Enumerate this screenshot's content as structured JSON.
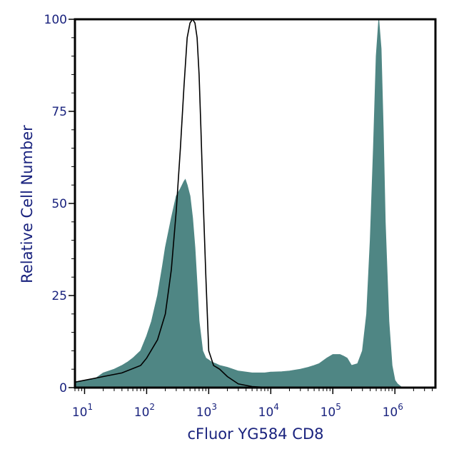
{
  "chart_data": {
    "type": "area",
    "xlabel": "cFluor YG584 CD8",
    "ylabel": "Relative Cell Number",
    "x_scale": "log",
    "xlim": [
      7,
      4500000
    ],
    "ylim": [
      0,
      100
    ],
    "y_ticks": [
      0,
      25,
      50,
      75,
      100
    ],
    "y_tick_labels": [
      "0",
      "25",
      "50",
      "75",
      "100"
    ],
    "x_ticks": [
      {
        "value": 10,
        "base": "10",
        "exp": "1"
      },
      {
        "value": 100,
        "base": "10",
        "exp": "2"
      },
      {
        "value": 1000,
        "base": "10",
        "exp": "3"
      },
      {
        "value": 10000,
        "base": "10",
        "exp": "4"
      },
      {
        "value": 100000,
        "base": "10",
        "exp": "5"
      },
      {
        "value": 1000000,
        "base": "10",
        "exp": "6"
      }
    ],
    "grid": false,
    "colors": {
      "filled": "#4f8684",
      "outline": "#000000",
      "axis": "#000000",
      "text": "#1a237e"
    },
    "series": [
      {
        "style": "filled",
        "x": [
          7,
          10,
          15,
          20,
          30,
          40,
          50,
          60,
          80,
          100,
          120,
          150,
          180,
          200,
          250,
          300,
          350,
          400,
          420,
          450,
          500,
          550,
          600,
          650,
          700,
          800,
          900,
          1000,
          1100,
          1300,
          1500,
          2000,
          3000,
          5000,
          8000,
          10000,
          15000,
          20000,
          30000,
          40000,
          50000,
          60000,
          80000,
          100000,
          130000,
          150000,
          170000,
          200000,
          250000,
          300000,
          350000,
          400000,
          450000,
          500000,
          550000,
          600000,
          650000,
          700000,
          800000,
          900000,
          1000000,
          1100000,
          1200000,
          1300000
        ],
        "y": [
          1.5,
          2,
          2.5,
          4,
          5,
          6,
          7,
          8,
          10,
          14,
          18,
          25,
          33,
          38,
          46,
          52,
          54,
          56,
          56.5,
          55,
          52,
          46,
          38,
          28,
          18,
          10,
          8,
          7.5,
          7,
          6.5,
          6,
          5.5,
          4.5,
          4,
          4,
          4.2,
          4.3,
          4.5,
          5,
          5.5,
          6,
          6.5,
          8,
          9,
          9,
          8.5,
          8,
          6,
          6.5,
          10,
          20,
          40,
          65,
          90,
          100,
          92,
          70,
          45,
          18,
          6,
          2,
          1,
          0.5,
          0
        ]
      },
      {
        "style": "outline",
        "x": [
          7,
          10,
          20,
          40,
          80,
          100,
          150,
          200,
          250,
          300,
          350,
          400,
          450,
          500,
          550,
          600,
          650,
          700,
          750,
          800,
          900,
          1000,
          1200,
          1500,
          2000,
          3000,
          5000,
          10000
        ],
        "y": [
          1.5,
          2,
          3,
          4,
          6,
          8,
          13,
          20,
          32,
          48,
          65,
          82,
          95,
          99,
          100,
          99,
          95,
          85,
          70,
          55,
          30,
          10,
          6,
          5,
          3,
          1,
          0.3,
          0
        ]
      }
    ]
  }
}
